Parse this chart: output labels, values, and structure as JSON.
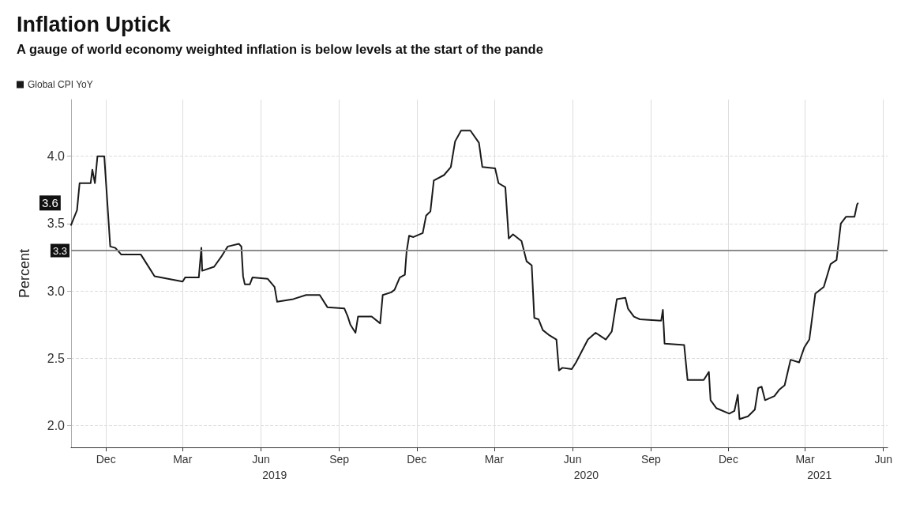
{
  "chart_data": {
    "type": "line",
    "title": "Inflation Uptick",
    "subtitle": "A gauge of world economy weighted inflation is below levels at the start of the pande",
    "ylabel": "Percent",
    "legend": "top left",
    "grid": true,
    "marker": "none",
    "line_style": "solid",
    "xlim": [
      "2018-11-04",
      "2021-06-20"
    ],
    "xticks": [
      {
        "value": "2018-12-15",
        "label": "Dec"
      },
      {
        "value": "2019-03-15",
        "label": "Mar"
      },
      {
        "value": "2019-06-15",
        "label": "Jun"
      },
      {
        "value": "2019-09-15",
        "label": "Sep"
      },
      {
        "value": "2019-12-15",
        "label": "Dec"
      },
      {
        "value": "2020-03-15",
        "label": "Mar"
      },
      {
        "value": "2020-06-15",
        "label": "Jun"
      },
      {
        "value": "2020-09-15",
        "label": "Sep"
      },
      {
        "value": "2020-12-15",
        "label": "Dec"
      },
      {
        "value": "2021-03-15",
        "label": "Mar"
      },
      {
        "value": "2021-06-15",
        "label": "Jun"
      }
    ],
    "x2lim": [
      "2018-11-04",
      "2021-06-20"
    ],
    "x2ticks": [
      {
        "value": "2019-07-01",
        "label": "2019"
      },
      {
        "value": "2020-07-01",
        "label": "2020"
      },
      {
        "value": "2021-04-01",
        "label": "2021"
      }
    ],
    "ylim": [
      1.84,
      4.42
    ],
    "yticks": [
      {
        "value": 2,
        "label": "2.0"
      },
      {
        "value": 2.5,
        "label": "2.5"
      },
      {
        "value": 3,
        "label": "3.0"
      },
      {
        "value": 3.5,
        "label": "3.5"
      },
      {
        "value": 4,
        "label": "4.0"
      }
    ],
    "ref_lines": [
      {
        "axis": "y",
        "value": 3.3,
        "label": "3.3",
        "color": "#8c8c8c"
      }
    ],
    "annotations": [
      "3.6"
    ],
    "series": [
      {
        "name": "Global CPI YoY",
        "color": "#1a1a1a",
        "x": [
          "2018-11-04",
          "2018-11-11",
          "2018-11-14",
          "2018-11-27",
          "2018-11-29",
          "2018-12-02",
          "2018-12-05",
          "2018-12-13",
          "2018-12-20",
          "2018-12-26",
          "2019-01-02",
          "2019-01-25",
          "2019-02-05",
          "2019-02-10",
          "2019-03-15",
          "2019-03-18",
          "2019-04-03",
          "2019-04-06",
          "2019-04-07",
          "2019-04-21",
          "2019-04-30",
          "2019-05-07",
          "2019-05-20",
          "2019-05-23",
          "2019-05-25",
          "2019-05-27",
          "2019-06-02",
          "2019-06-05",
          "2019-06-23",
          "2019-07-01",
          "2019-07-04",
          "2019-07-23",
          "2019-08-07",
          "2019-08-23",
          "2019-09-01",
          "2019-09-21",
          "2019-09-25",
          "2019-09-28",
          "2019-10-04",
          "2019-10-07",
          "2019-10-23",
          "2019-11-02",
          "2019-11-05",
          "2019-11-15",
          "2019-11-19",
          "2019-11-25",
          "2019-12-01",
          "2019-12-03",
          "2019-12-06",
          "2019-12-11",
          "2019-12-22",
          "2019-12-26",
          "2019-12-31",
          "2020-01-04",
          "2020-01-16",
          "2020-01-24",
          "2020-01-29",
          "2020-02-05",
          "2020-02-16",
          "2020-02-26",
          "2020-03-01",
          "2020-03-16",
          "2020-03-20",
          "2020-03-28",
          "2020-04-01",
          "2020-04-06",
          "2020-04-16",
          "2020-04-22",
          "2020-04-28",
          "2020-05-01",
          "2020-05-06",
          "2020-05-11",
          "2020-05-19",
          "2020-05-27",
          "2020-05-30",
          "2020-06-03",
          "2020-06-14",
          "2020-06-19",
          "2020-07-03",
          "2020-07-12",
          "2020-07-24",
          "2020-07-31",
          "2020-08-06",
          "2020-08-16",
          "2020-08-19",
          "2020-08-26",
          "2020-09-02",
          "2020-09-27",
          "2020-09-29",
          "2020-10-01",
          "2020-10-24",
          "2020-10-28",
          "2020-11-16",
          "2020-11-22",
          "2020-11-24",
          "2020-12-01",
          "2020-12-16",
          "2020-12-22",
          "2020-12-26",
          "2020-12-28",
          "2021-01-07",
          "2021-01-15",
          "2021-01-19",
          "2021-01-23",
          "2021-01-27",
          "2021-02-07",
          "2021-02-13",
          "2021-02-19",
          "2021-02-26",
          "2021-03-08",
          "2021-03-14",
          "2021-03-20",
          "2021-03-27",
          "2021-04-06",
          "2021-04-14",
          "2021-04-21",
          "2021-04-26",
          "2021-05-02",
          "2021-05-12",
          "2021-05-15",
          "2021-05-16"
        ],
        "values": [
          3.49,
          3.6,
          3.8,
          3.8,
          3.9,
          3.8,
          4.0,
          4.0,
          3.33,
          3.32,
          3.27,
          3.27,
          3.16,
          3.11,
          3.07,
          3.1,
          3.1,
          3.32,
          3.15,
          3.18,
          3.26,
          3.33,
          3.35,
          3.33,
          3.11,
          3.05,
          3.05,
          3.1,
          3.09,
          3.03,
          2.92,
          2.94,
          2.97,
          2.97,
          2.88,
          2.87,
          2.81,
          2.75,
          2.69,
          2.81,
          2.81,
          2.76,
          2.97,
          2.99,
          3.01,
          3.1,
          3.12,
          3.29,
          3.41,
          3.4,
          3.43,
          3.56,
          3.59,
          3.82,
          3.86,
          3.92,
          4.11,
          4.19,
          4.19,
          4.1,
          3.92,
          3.91,
          3.8,
          3.77,
          3.39,
          3.42,
          3.37,
          3.22,
          3.19,
          2.8,
          2.79,
          2.71,
          2.67,
          2.64,
          2.41,
          2.43,
          2.42,
          2.47,
          2.64,
          2.69,
          2.64,
          2.7,
          2.94,
          2.95,
          2.87,
          2.81,
          2.79,
          2.78,
          2.86,
          2.61,
          2.6,
          2.34,
          2.34,
          2.4,
          2.19,
          2.13,
          2.09,
          2.11,
          2.23,
          2.05,
          2.07,
          2.12,
          2.28,
          2.29,
          2.19,
          2.22,
          2.27,
          2.3,
          2.49,
          2.47,
          2.58,
          2.64,
          2.98,
          3.03,
          3.2,
          3.23,
          3.5,
          3.55,
          3.55,
          3.64,
          3.65
        ]
      }
    ]
  }
}
